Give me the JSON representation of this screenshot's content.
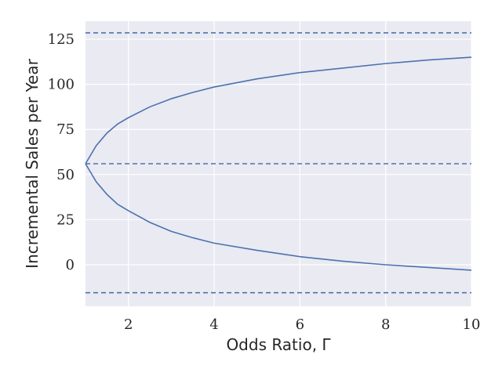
{
  "chart_data": {
    "type": "line",
    "title": "",
    "xlabel": "Odds Ratio, Γ",
    "ylabel": "Incremental Sales per Year",
    "xlim": [
      1,
      10
    ],
    "ylim": [
      -23,
      135
    ],
    "xticks": [
      2,
      4,
      6,
      8,
      10
    ],
    "yticks": [
      0,
      25,
      50,
      75,
      100,
      125
    ],
    "grid": true,
    "background_color": "#EAEAF2",
    "line_color": "#4C72B0",
    "series": [
      {
        "style": "solid",
        "x": [
          1,
          1.25,
          1.5,
          1.75,
          2,
          2.5,
          3,
          3.5,
          4,
          5,
          6,
          7,
          8,
          9,
          10
        ],
        "y": [
          56,
          66,
          73,
          78,
          81.5,
          87.5,
          92,
          95.5,
          98.5,
          103,
          106.5,
          109,
          111.5,
          113.5,
          115
        ]
      },
      {
        "style": "solid",
        "x": [
          1,
          1.25,
          1.5,
          1.75,
          2,
          2.5,
          3,
          3.5,
          4,
          5,
          6,
          7,
          8,
          9,
          10
        ],
        "y": [
          56,
          46,
          39,
          33.5,
          30,
          23.5,
          18.5,
          15,
          12,
          8,
          4.5,
          2,
          0,
          -1.5,
          -3
        ]
      },
      {
        "style": "dashed",
        "x": [
          1,
          10
        ],
        "y": [
          128.5,
          128.5
        ]
      },
      {
        "style": "dashed",
        "x": [
          1,
          10
        ],
        "y": [
          56,
          56
        ]
      },
      {
        "style": "dashed",
        "x": [
          1,
          10
        ],
        "y": [
          -15.5,
          -15.5
        ]
      }
    ]
  }
}
